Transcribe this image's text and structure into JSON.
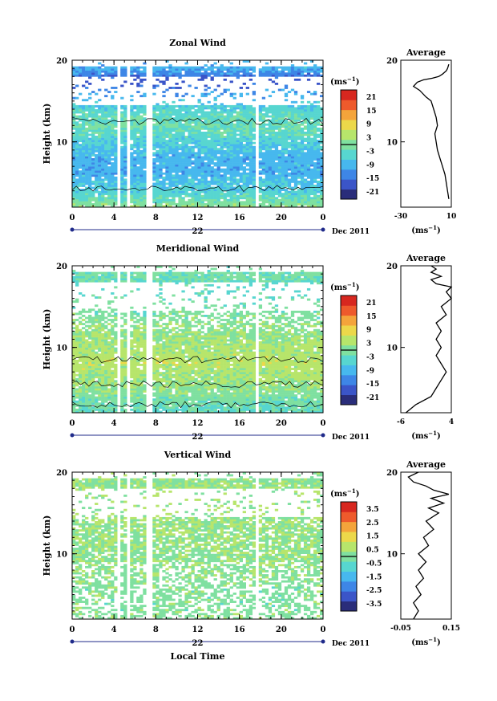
{
  "chart_data": [
    {
      "type": "heatmap",
      "title": "Zonal Wind",
      "ylabel": "Height (km)",
      "x_ticks": [
        "0",
        "4",
        "8",
        "12",
        "16",
        "20",
        "0"
      ],
      "y_ticks": [
        "20",
        "10"
      ],
      "date_day": "22",
      "date_month": "Dec 2011",
      "xlim": [
        0,
        24
      ],
      "ylim": [
        2,
        20
      ],
      "colorbar": {
        "unit": "(ms",
        "unit_exp": "−1",
        "unit_close": ")",
        "ticks": [
          "21",
          "15",
          "9",
          "3",
          "-3",
          "-9",
          "-15",
          "-21"
        ],
        "range": [
          -24,
          24
        ]
      },
      "field_profile": {
        "heights": [
          2,
          4,
          6,
          8,
          10,
          12,
          14,
          16,
          17.5,
          19
        ],
        "values": [
          2,
          -6,
          -10,
          -10,
          -6,
          -2,
          -5,
          -12,
          -20,
          -10
        ]
      },
      "average": {
        "title": "Average",
        "unit": "(ms",
        "unit_exp": "−1",
        "unit_close": ")",
        "x_ticks": [
          "-30",
          "10"
        ],
        "xlim": [
          -30,
          10
        ],
        "y_ticks": [
          "20",
          "10"
        ],
        "points": [
          [
            8,
            3
          ],
          [
            7,
            4
          ],
          [
            6,
            5
          ],
          [
            5,
            6
          ],
          [
            3,
            7
          ],
          [
            1,
            8
          ],
          [
            -1,
            9
          ],
          [
            -2,
            10
          ],
          [
            -3,
            11
          ],
          [
            -1,
            12
          ],
          [
            -2,
            13
          ],
          [
            -4,
            14
          ],
          [
            -6,
            15
          ],
          [
            -10,
            15.5
          ],
          [
            -15,
            16.3
          ],
          [
            -20,
            16.8
          ],
          [
            -17,
            17.3
          ],
          [
            -12,
            17.6
          ],
          [
            -5,
            17.8
          ],
          [
            0,
            18
          ],
          [
            3,
            18.3
          ],
          [
            6,
            18.7
          ],
          [
            7,
            19
          ],
          [
            8,
            19.5
          ]
        ]
      }
    },
    {
      "type": "heatmap",
      "title": "Meridional Wind",
      "ylabel": "Height (km)",
      "x_ticks": [
        "0",
        "4",
        "8",
        "12",
        "16",
        "20",
        "0"
      ],
      "y_ticks": [
        "20",
        "10"
      ],
      "date_day": "22",
      "date_month": "Dec 2011",
      "xlim": [
        0,
        24
      ],
      "ylim": [
        2,
        20
      ],
      "colorbar": {
        "unit": "(ms",
        "unit_exp": "−1",
        "unit_close": ")",
        "ticks": [
          "21",
          "15",
          "9",
          "3",
          "-3",
          "-9",
          "-15",
          "-21"
        ],
        "range": [
          -24,
          24
        ]
      },
      "field_profile": {
        "heights": [
          2,
          4,
          6,
          8,
          10,
          12,
          14,
          16,
          17.5,
          19
        ],
        "values": [
          -3,
          0,
          3,
          5,
          4,
          2,
          0,
          -2,
          -4,
          -1
        ]
      },
      "average": {
        "title": "Average",
        "unit": "(ms",
        "unit_exp": "−1",
        "unit_close": ")",
        "x_ticks": [
          "-6",
          "4"
        ],
        "xlim": [
          -6,
          4
        ],
        "y_ticks": [
          "20",
          "10"
        ],
        "points": [
          [
            -5,
            2
          ],
          [
            -3,
            3
          ],
          [
            0,
            4
          ],
          [
            1,
            5
          ],
          [
            2,
            6
          ],
          [
            3,
            7
          ],
          [
            2,
            8
          ],
          [
            1,
            9
          ],
          [
            2,
            10
          ],
          [
            1,
            11
          ],
          [
            2,
            12
          ],
          [
            1,
            13
          ],
          [
            3,
            14
          ],
          [
            2,
            15
          ],
          [
            4,
            16
          ],
          [
            3,
            16.8
          ],
          [
            4,
            17.4
          ],
          [
            1,
            17.8
          ],
          [
            0,
            18.3
          ],
          [
            2,
            18.7
          ],
          [
            0,
            19.2
          ],
          [
            1,
            19.6
          ],
          [
            0,
            20
          ]
        ]
      }
    },
    {
      "type": "heatmap",
      "title": "Vertical Wind",
      "ylabel": "Height (km)",
      "xlabel": "Local Time",
      "x_ticks": [
        "0",
        "4",
        "8",
        "12",
        "16",
        "20",
        "0"
      ],
      "y_ticks": [
        "20",
        "10"
      ],
      "date_day": "22",
      "date_month": "Dec 2011",
      "xlim": [
        0,
        24
      ],
      "ylim": [
        2,
        20
      ],
      "colorbar": {
        "unit": "(ms",
        "unit_exp": "−1",
        "unit_close": ")",
        "ticks": [
          "3.5",
          "2.5",
          "1.5",
          "0.5",
          "-0.5",
          "-1.5",
          "-2.5",
          "-3.5"
        ],
        "range": [
          -4,
          4
        ]
      },
      "field_profile": {
        "heights": [
          2,
          5,
          8,
          11,
          14,
          17,
          19
        ],
        "values": [
          0.1,
          0.0,
          0.2,
          0.3,
          0.4,
          0.5,
          0.3
        ]
      },
      "average": {
        "title": "Average",
        "unit": "(ms",
        "unit_exp": "−1",
        "unit_close": ")",
        "x_ticks": [
          "-0.05",
          "0.15"
        ],
        "xlim": [
          -0.05,
          0.15
        ],
        "y_ticks": [
          "20",
          "10"
        ],
        "points": [
          [
            0.0,
            2
          ],
          [
            0.02,
            3
          ],
          [
            0.0,
            4
          ],
          [
            0.03,
            5
          ],
          [
            0.01,
            6
          ],
          [
            0.04,
            7
          ],
          [
            0.02,
            8
          ],
          [
            0.05,
            9
          ],
          [
            0.02,
            10
          ],
          [
            0.06,
            11
          ],
          [
            0.04,
            12
          ],
          [
            0.08,
            13
          ],
          [
            0.05,
            14
          ],
          [
            0.1,
            15
          ],
          [
            0.06,
            15.6
          ],
          [
            0.12,
            16.2
          ],
          [
            0.07,
            16.8
          ],
          [
            0.14,
            17.3
          ],
          [
            0.08,
            17.8
          ],
          [
            0.05,
            18.3
          ],
          [
            0.0,
            18.8
          ],
          [
            -0.02,
            19.4
          ],
          [
            0.02,
            20
          ]
        ]
      }
    }
  ],
  "colors": {
    "palette": [
      "#2a2d7a",
      "#3b55c8",
      "#3e86e6",
      "#47b8ee",
      "#57d6d0",
      "#7fe0a0",
      "#b7e56b",
      "#ecd84a",
      "#f4a43b",
      "#ee5a2c",
      "#d7271f"
    ],
    "date_bar": "#1f2a8a"
  }
}
